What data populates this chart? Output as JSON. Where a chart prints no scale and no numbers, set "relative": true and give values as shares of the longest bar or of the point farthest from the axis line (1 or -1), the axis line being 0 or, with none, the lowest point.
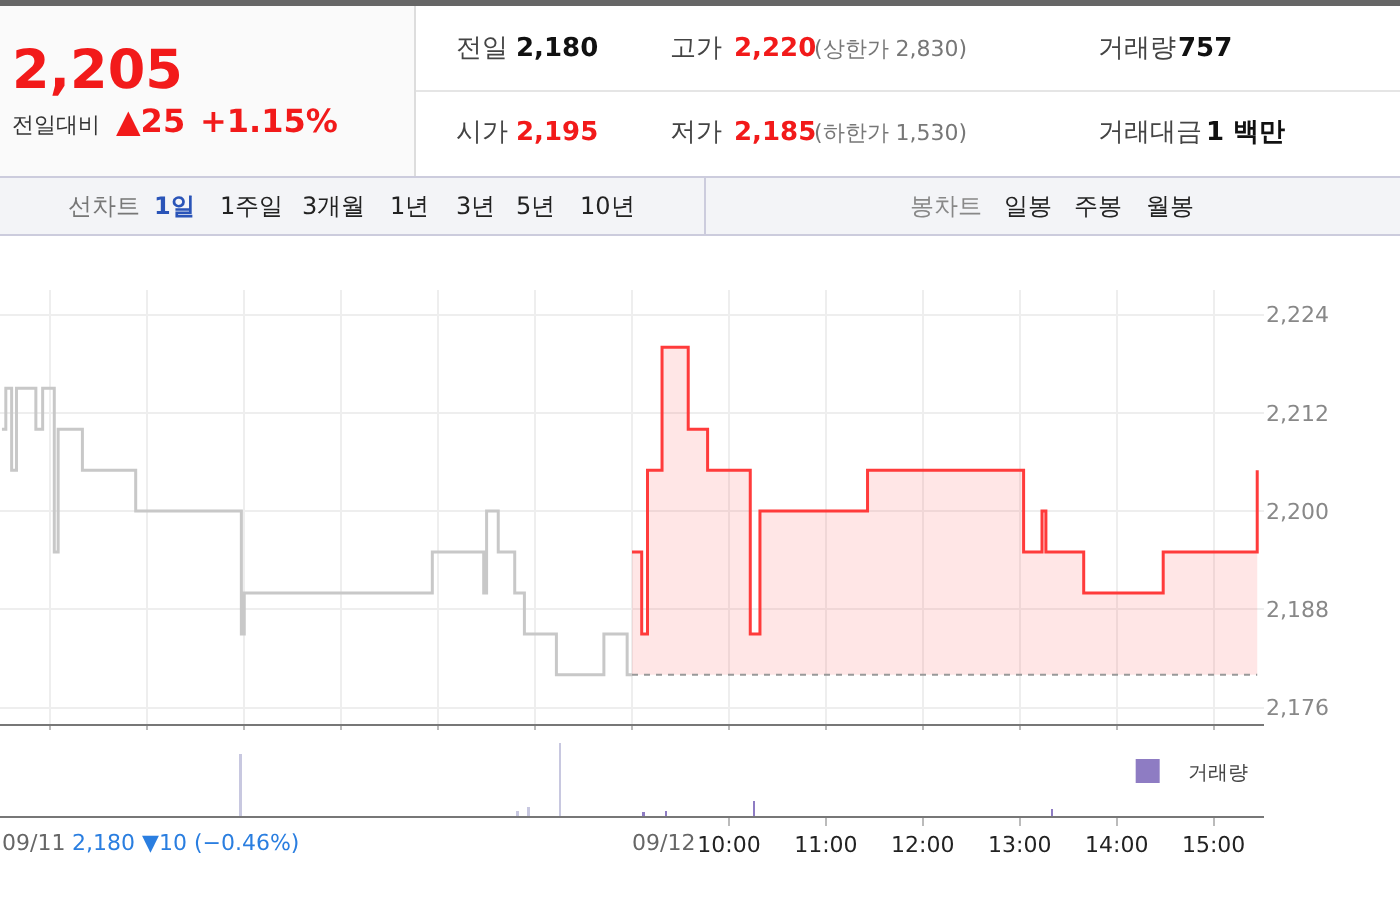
{
  "chart_data": [
    {
      "type": "step",
      "annotations": [
        "2,205",
        "전일대비",
        "▲25",
        "+1.15%",
        "전일",
        "2,180",
        "고가",
        "2,220",
        "(상한가 2,830)",
        "거래량",
        "757",
        "시가",
        "2,195",
        "저가",
        "2,185",
        "(하한가 1,530)",
        "거래대금",
        "1 백만",
        "선차트",
        "1일",
        "1주일",
        "3개월",
        "1년",
        "3년",
        "5년",
        "10년",
        "봉차트",
        "일봉",
        "주봉",
        "월봉"
      ],
      "series": [
        {
          "color": "#c8c8c8",
          "x": [
            2.5,
            2.54,
            2.6,
            2.65,
            2.85,
            2.92,
            3.04,
            3.08,
            3.33,
            3.88,
            4.97,
            5.0,
            6.94,
            7.47,
            7.5,
            7.62,
            7.79,
            7.89,
            8.22,
            8.71,
            8.95,
            9.0
          ],
          "values": [
            2210,
            2215,
            2205,
            2215,
            2210,
            2215,
            2195,
            2210,
            2205,
            2200,
            2185,
            2190,
            2195,
            2190,
            2200,
            2195,
            2190,
            2185,
            2180,
            2185,
            2180,
            2180
          ]
        },
        {
          "type": "area",
          "color": "#ff3b3b",
          "x": [
            9.0,
            9.1,
            9.1,
            9.16,
            9.16,
            9.31,
            9.31,
            9.58,
            9.58,
            9.78,
            9.78,
            10.22,
            10.22,
            10.32,
            10.32,
            11.43,
            11.43,
            13.04,
            13.04,
            13.23,
            13.23,
            13.27,
            13.27,
            13.66,
            13.66,
            14.48,
            14.48,
            15.45,
            15.45
          ],
          "values": [
            2195,
            2195,
            2185,
            2185,
            2205,
            2205,
            2220,
            2220,
            2210,
            2210,
            2205,
            2205,
            2185,
            2185,
            2200,
            2200,
            2205,
            2205,
            2195,
            2195,
            2200,
            2200,
            2195,
            2195,
            2190,
            2190,
            2195,
            2195,
            2205
          ]
        }
      ],
      "ref_lines": [
        {
          "axis": "y",
          "value": 2180,
          "color": "#999999",
          "line_style": "dotted"
        }
      ],
      "xlim": [
        2.48,
        15.52
      ],
      "xticks": [
        {
          "value": 3,
          "label": null
        },
        {
          "value": 4,
          "label": null
        },
        {
          "value": 5,
          "label": null
        },
        {
          "value": 6,
          "label": null
        },
        {
          "value": 7,
          "label": null
        },
        {
          "value": 8,
          "label": null
        },
        {
          "value": 9,
          "label": null
        },
        {
          "value": 10,
          "label": null
        },
        {
          "value": 11,
          "label": null
        },
        {
          "value": 12,
          "label": null
        },
        {
          "value": 13,
          "label": null
        },
        {
          "value": 14,
          "label": null
        },
        {
          "value": 15,
          "label": null
        }
      ],
      "ylim": [
        2174,
        2227
      ],
      "yticks": [
        {
          "value": 2176,
          "label": "2,176"
        },
        {
          "value": 2188,
          "label": "2,188"
        },
        {
          "value": 2200,
          "label": "2,200"
        },
        {
          "value": 2212,
          "label": "2,212"
        },
        {
          "value": 2224,
          "label": "2,224"
        }
      ],
      "grid": true,
      "tick_labels": "y",
      "marker": "none",
      "line_style": "solid"
    },
    {
      "type": "bar",
      "relative": true,
      "legend": "top right",
      "tick_labels": "x",
      "annotations": [
        "2,180 ▼10 (−0.46%)",
        "09/11",
        "09/12"
      ],
      "x": [
        4.96,
        7.82,
        7.93,
        8.26,
        9.12,
        9.35,
        10.26,
        13.33
      ],
      "series": [
        {
          "name": "거래량",
          "color": "#8e7cc3",
          "colors": [
            "#c8c8e0",
            "#c8c8e0",
            "#c8c8e0",
            "#c8c8e0",
            "#8e7cc3",
            "#8e7cc3",
            "#8e7cc3",
            "#8e7cc3"
          ],
          "values": [
            0.86,
            0.07,
            0.13,
            1,
            0.05,
            0.07,
            0.21,
            0.1
          ]
        }
      ],
      "xlim": [
        2.48,
        15.52
      ],
      "xticks": [
        {
          "value": 10,
          "label": "10:00"
        },
        {
          "value": 11,
          "label": "11:00"
        },
        {
          "value": 12,
          "label": "12:00"
        },
        {
          "value": 13,
          "label": "13:00"
        },
        {
          "value": 14,
          "label": "14:00"
        },
        {
          "value": 15,
          "label": "15:00"
        }
      ]
    }
  ]
}
